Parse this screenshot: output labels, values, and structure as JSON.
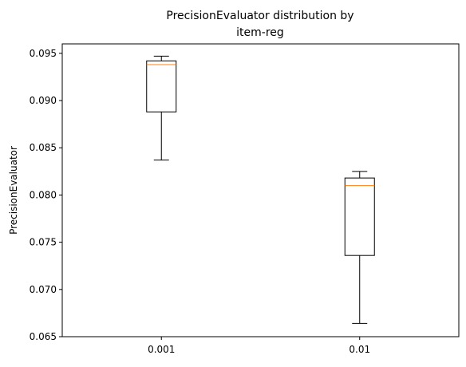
{
  "chart_data": {
    "type": "boxplot",
    "title_lines": [
      "PrecisionEvaluator distribution by",
      "item-reg"
    ],
    "xlabel": "",
    "ylabel": "PrecisionEvaluator",
    "categories": [
      "0.001",
      "0.01"
    ],
    "ylim": [
      0.065,
      0.096
    ],
    "yticks": [
      0.065,
      0.07,
      0.075,
      0.08,
      0.085,
      0.09,
      0.095
    ],
    "ytick_labels": [
      "0.065",
      "0.070",
      "0.075",
      "0.080",
      "0.085",
      "0.090",
      "0.095"
    ],
    "grid": false,
    "boxes": [
      {
        "category": "0.001",
        "whisker_low": 0.0837,
        "q1": 0.0888,
        "median": 0.0938,
        "q3": 0.0942,
        "whisker_high": 0.0947
      },
      {
        "category": "0.01",
        "whisker_low": 0.0664,
        "q1": 0.0736,
        "median": 0.081,
        "q3": 0.0818,
        "whisker_high": 0.0825
      }
    ],
    "colors": {
      "box": "#000000",
      "median": "#ff7f0e",
      "axes": "#000000"
    }
  }
}
